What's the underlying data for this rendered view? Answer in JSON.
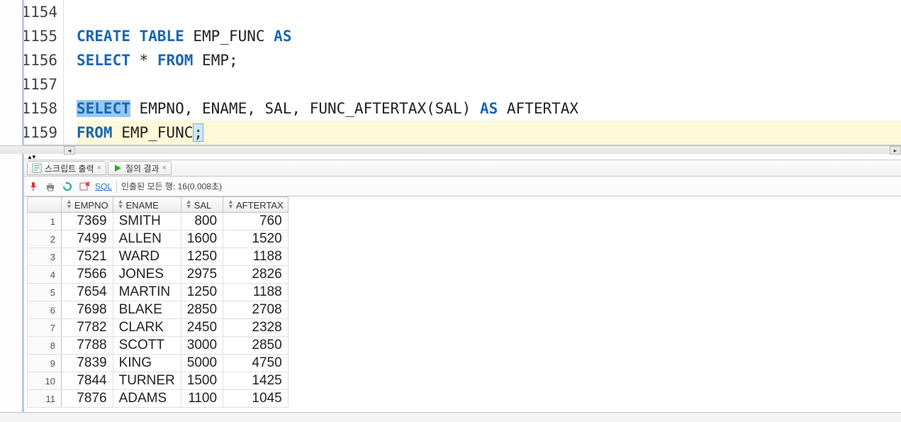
{
  "editor": {
    "lineNumbers": [
      "1154",
      "1155",
      "1156",
      "1157",
      "1158",
      "1159"
    ],
    "lines": {
      "l1155": {
        "kw1": "CREATE",
        "kw2": "TABLE",
        "txt1": " EMP_FUNC ",
        "kw3": "AS"
      },
      "l1156": {
        "kw1": "SELECT",
        "star": "*",
        "kw2": "FROM",
        "txt1": " EMP;"
      },
      "l1158": {
        "kw1": "SELECT",
        "txt1": " EMPNO, ENAME, SAL, FUNC_AFTERTAX(SAL) ",
        "kw2": "AS",
        "txt2": " AFTERTAX"
      },
      "l1159": {
        "kw1": "FROM",
        "txt1": " EMP_FUNC",
        "semi": ";"
      }
    }
  },
  "tabs": {
    "scriptOut": "스크립트 출력",
    "queryResult": "질의 결과"
  },
  "toolbar": {
    "sql": "SQL",
    "status": "인출된 모든 행: 16(0.008초)"
  },
  "grid": {
    "headers": {
      "c1": "EMPNO",
      "c2": "ENAME",
      "c3": "SAL",
      "c4": "AFTERTAX"
    },
    "rows": [
      {
        "n": "1",
        "empno": "7369",
        "ename": "SMITH",
        "sal": "800",
        "after": "760"
      },
      {
        "n": "2",
        "empno": "7499",
        "ename": "ALLEN",
        "sal": "1600",
        "after": "1520"
      },
      {
        "n": "3",
        "empno": "7521",
        "ename": "WARD",
        "sal": "1250",
        "after": "1188"
      },
      {
        "n": "4",
        "empno": "7566",
        "ename": "JONES",
        "sal": "2975",
        "after": "2826"
      },
      {
        "n": "5",
        "empno": "7654",
        "ename": "MARTIN",
        "sal": "1250",
        "after": "1188"
      },
      {
        "n": "6",
        "empno": "7698",
        "ename": "BLAKE",
        "sal": "2850",
        "after": "2708"
      },
      {
        "n": "7",
        "empno": "7782",
        "ename": "CLARK",
        "sal": "2450",
        "after": "2328"
      },
      {
        "n": "8",
        "empno": "7788",
        "ename": "SCOTT",
        "sal": "3000",
        "after": "2850"
      },
      {
        "n": "9",
        "empno": "7839",
        "ename": "KING",
        "sal": "5000",
        "after": "4750"
      },
      {
        "n": "10",
        "empno": "7844",
        "ename": "TURNER",
        "sal": "1500",
        "after": "1425"
      },
      {
        "n": "11",
        "empno": "7876",
        "ename": "ADAMS",
        "sal": "1100",
        "after": "1045"
      }
    ]
  },
  "colors": {
    "keyword": "#1a66b3",
    "selection": "#95c8f0",
    "currentLine": "#fdf8d8"
  }
}
